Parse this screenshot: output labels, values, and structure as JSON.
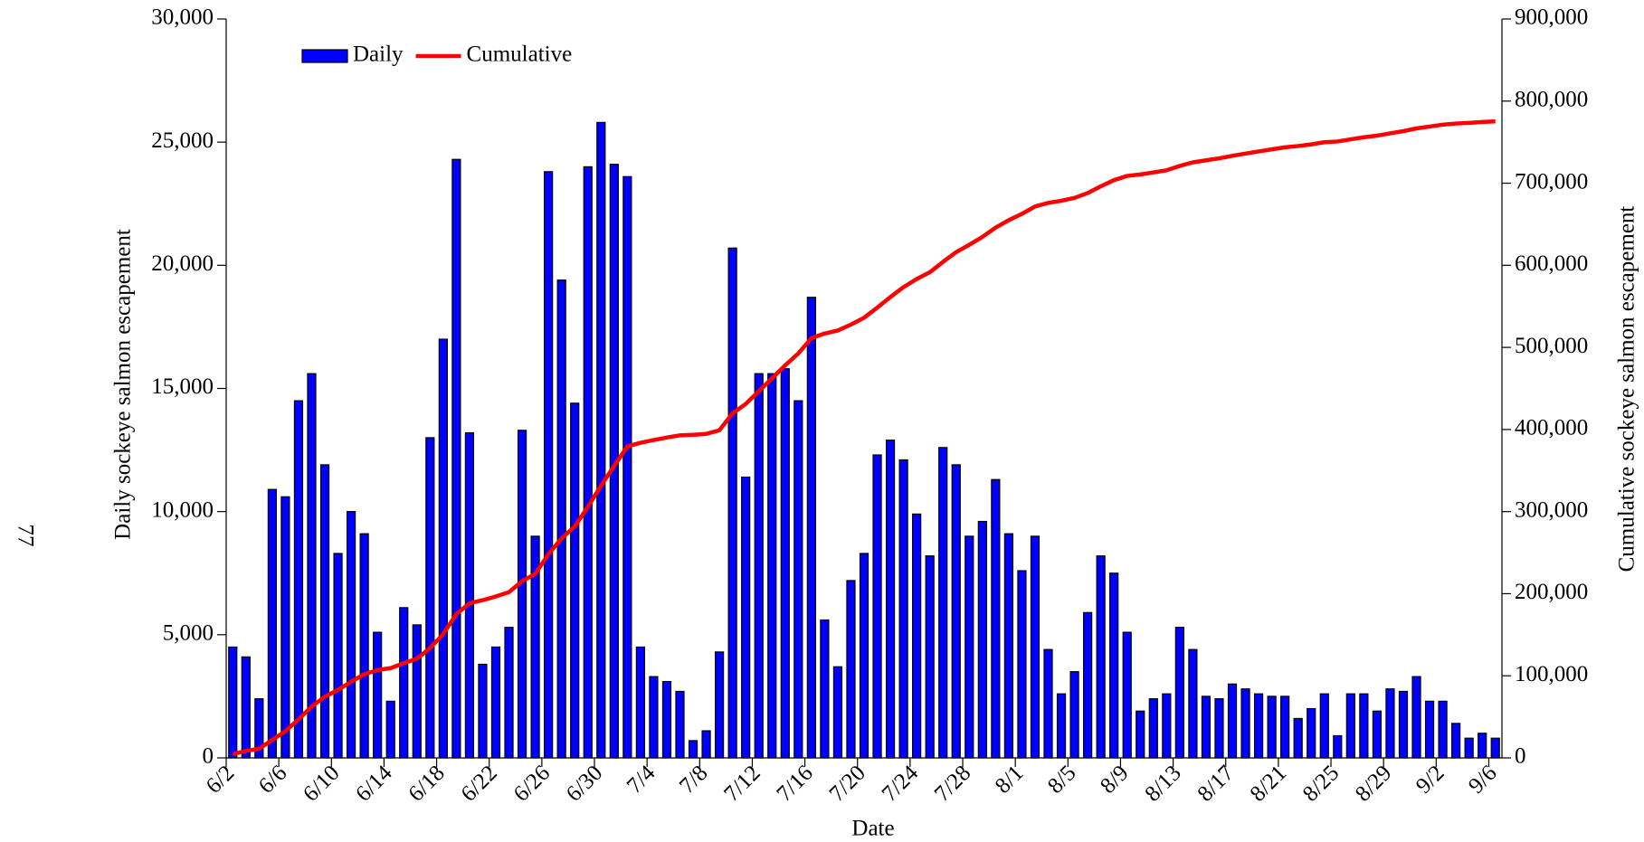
{
  "chart_data": {
    "type": "bar",
    "page_number": "77",
    "xlabel": "Date",
    "ylabel": "Daily sockeye salmon escapement",
    "y2label": "Cumulative sockeye salmon escapement",
    "categories": [
      "6/2",
      null,
      null,
      null,
      "6/6",
      null,
      null,
      null,
      "6/10",
      null,
      null,
      null,
      "6/14",
      null,
      null,
      null,
      "6/18",
      null,
      null,
      null,
      "6/22",
      null,
      null,
      null,
      "6/26",
      null,
      null,
      null,
      "6/30",
      null,
      null,
      null,
      "7/4",
      null,
      null,
      null,
      "7/8",
      null,
      null,
      null,
      "7/12",
      null,
      null,
      null,
      "7/16",
      null,
      null,
      null,
      "7/20",
      null,
      null,
      null,
      "7/24",
      null,
      null,
      null,
      "7/28",
      null,
      null,
      null,
      "8/1",
      null,
      null,
      null,
      "8/5",
      null,
      null,
      null,
      "8/9",
      null,
      null,
      null,
      "8/13",
      null,
      null,
      null,
      "8/17",
      null,
      null,
      null,
      "8/21",
      null,
      null,
      null,
      "8/25",
      null,
      null,
      null,
      "8/29",
      null,
      null,
      null,
      "9/2",
      null,
      null,
      null,
      "9/6"
    ],
    "series": [
      {
        "name": "Daily",
        "type": "bar",
        "color": "#0000ff",
        "values": [
          4500,
          4100,
          2400,
          10900,
          10600,
          14500,
          15600,
          11900,
          8300,
          10000,
          9100,
          5100,
          2300,
          6100,
          5400,
          13000,
          17000,
          24300,
          13200,
          3800,
          4500,
          5300,
          13300,
          9000,
          23800,
          19400,
          14400,
          24000,
          25800,
          24100,
          23600,
          4500,
          3300,
          3100,
          2700,
          700,
          1100,
          4300,
          20700,
          11400,
          15600,
          15600,
          15800,
          14500,
          18700,
          5600,
          3700,
          7200,
          8300,
          12300,
          12900,
          12100,
          9900,
          8200,
          12600,
          11900,
          9000,
          9600,
          11300,
          9100,
          7600,
          9000,
          4400,
          2600,
          3500,
          5900,
          8200,
          7500,
          5100,
          1900,
          2400,
          2600,
          5300,
          4400,
          2500,
          2400,
          3000,
          2800,
          2600,
          2500,
          2500,
          1600,
          2000,
          2600,
          900,
          2600,
          2600,
          1900,
          2800,
          2700,
          3300,
          2300,
          2300,
          1400,
          800,
          1000,
          800
        ]
      },
      {
        "name": "Cumulative",
        "type": "line",
        "axis": "y2",
        "color": "#ff0000",
        "values": [
          4500,
          8600,
          11000,
          21900,
          32500,
          47000,
          62600,
          74500,
          82800,
          92800,
          101900,
          107000,
          109300,
          115400,
          120800,
          133800,
          150800,
          175100,
          188300,
          192100,
          196600,
          201900,
          215200,
          224200,
          248000,
          267400,
          281800,
          305800,
          331600,
          355700,
          379300,
          383800,
          387100,
          390200,
          392900,
          393600,
          394700,
          399000,
          419700,
          431100,
          446700,
          462300,
          478100,
          492600,
          511300,
          516900,
          520600,
          527800,
          536100,
          548400,
          561300,
          573400,
          583300,
          591500,
          604100,
          616000,
          625000,
          634600,
          645900,
          655000,
          662600,
          671600,
          676000,
          678600,
          682100,
          688000,
          696200,
          703700,
          708800,
          710700,
          713100,
          715700,
          721000,
          725400,
          727900,
          730300,
          733300,
          736100,
          738700,
          741200,
          743700,
          745300,
          747300,
          749900,
          750800,
          753400,
          756000,
          757900,
          760700,
          763400,
          766700,
          769000,
          771300,
          772700,
          773500,
          774500,
          775300
        ]
      }
    ],
    "ylim": [
      0,
      30000
    ],
    "yticks": [
      0,
      {
        "value": 5000,
        "label": "5,000"
      },
      {
        "value": 10000,
        "label": "10,000"
      },
      {
        "value": 15000,
        "label": "15,000"
      },
      {
        "value": 20000,
        "label": "20,000"
      },
      {
        "value": 25000,
        "label": "25,000"
      },
      {
        "value": 30000,
        "label": "30,000"
      }
    ],
    "y2lim": [
      0,
      900000
    ],
    "y2ticks": [
      0,
      {
        "value": 100000,
        "label": "100,000"
      },
      {
        "value": 200000,
        "label": "200,000"
      },
      {
        "value": 300000,
        "label": "300,000"
      },
      {
        "value": 400000,
        "label": "400,000"
      },
      {
        "value": 500000,
        "label": "500,000"
      },
      {
        "value": 600000,
        "label": "600,000"
      },
      {
        "value": 700000,
        "label": "700,000"
      },
      {
        "value": 800000,
        "label": "800,000"
      },
      {
        "value": 900000,
        "label": "900,000"
      }
    ],
    "grid": false,
    "legend": "top-left"
  }
}
